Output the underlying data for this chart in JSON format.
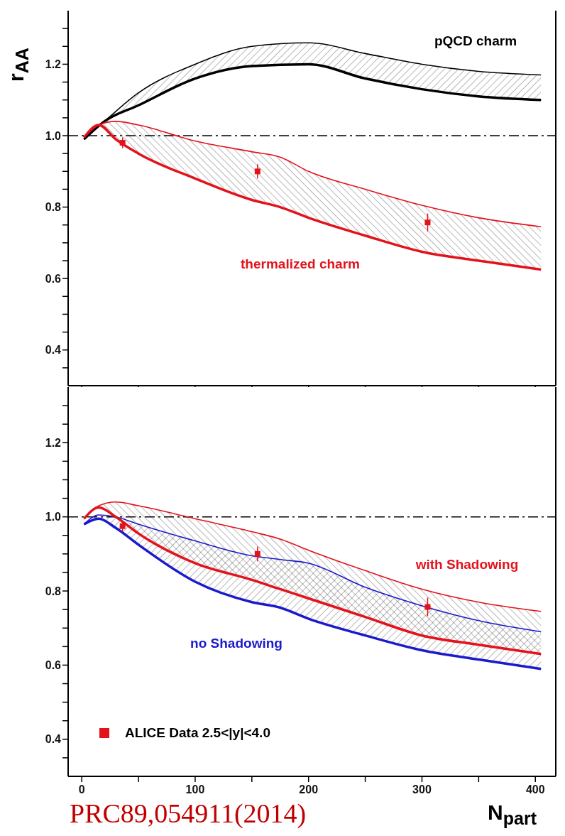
{
  "chart_data": [
    {
      "type": "line",
      "ylabel": "r$_{AA}$",
      "xlim": [
        -12,
        418
      ],
      "ylim": [
        0.3,
        1.35
      ],
      "xticks": [
        {
          "value": 0,
          "label": null
        },
        {
          "value": 50,
          "label": null
        },
        {
          "value": 100,
          "label": null
        },
        {
          "value": 150,
          "label": null
        },
        {
          "value": 200,
          "label": null
        },
        {
          "value": 250,
          "label": null
        },
        {
          "value": 300,
          "label": null
        },
        {
          "value": 350,
          "label": null
        },
        {
          "value": 400,
          "label": null
        }
      ],
      "yticks": [
        {
          "value": 0.35,
          "label": null
        },
        0.4,
        {
          "value": 0.45,
          "label": null
        },
        {
          "value": 0.5,
          "label": null
        },
        {
          "value": 0.55,
          "label": null
        },
        0.6,
        {
          "value": 0.65,
          "label": null
        },
        {
          "value": 0.7,
          "label": null
        },
        {
          "value": 0.75,
          "label": null
        },
        0.8,
        {
          "value": 0.85,
          "label": null
        },
        {
          "value": 0.9,
          "label": null
        },
        {
          "value": 0.95,
          "label": null
        },
        {
          "value": 1,
          "label": "1.0"
        },
        {
          "value": 1.05,
          "label": null
        },
        {
          "value": 1.1,
          "label": null
        },
        {
          "value": 1.15,
          "label": null
        },
        1.2,
        {
          "value": 1.25,
          "label": null
        },
        {
          "value": 1.3,
          "label": null
        }
      ],
      "tick_labels": "y",
      "legend": false,
      "ref_lines": [
        {
          "axis": "y",
          "value": 1,
          "line_style": "dashed",
          "color": "#000000"
        }
      ],
      "series": [
        {
          "name": "pQCD charm",
          "color": "#000000",
          "x": [
            2,
            20,
            50,
            100,
            150,
            200,
            250,
            300,
            350,
            405
          ],
          "values": [
            0.99,
            1.04,
            1.085,
            1.16,
            1.195,
            1.2,
            1.16,
            1.13,
            1.11,
            1.1
          ],
          "lower": [
            0.99,
            1.04,
            1.085,
            1.16,
            1.195,
            1.2,
            1.16,
            1.13,
            1.11,
            1.1
          ],
          "upper": [
            0.99,
            1.04,
            1.12,
            1.2,
            1.25,
            1.26,
            1.23,
            1.2,
            1.18,
            1.17
          ]
        },
        {
          "color": "#000000",
          "x": [
            2,
            20,
            50,
            100,
            150,
            200,
            250,
            300,
            350,
            405
          ],
          "values": [
            0.99,
            1.04,
            1.12,
            1.2,
            1.25,
            1.26,
            1.23,
            1.2,
            1.18,
            1.17
          ]
        },
        {
          "name": "thermalized charm",
          "color": "#e3121b",
          "x": [
            2,
            15,
            30,
            50,
            100,
            150,
            175,
            200,
            250,
            300,
            350,
            405
          ],
          "values": [
            0.995,
            1.03,
            0.99,
            0.95,
            0.88,
            0.82,
            0.8,
            0.77,
            0.72,
            0.675,
            0.65,
            0.625
          ],
          "lower": [
            0.995,
            1.03,
            0.99,
            0.95,
            0.88,
            0.82,
            0.8,
            0.77,
            0.72,
            0.675,
            0.65,
            0.625
          ],
          "upper": [
            0.995,
            1.03,
            1.04,
            1.03,
            0.985,
            0.955,
            0.94,
            0.9,
            0.85,
            0.805,
            0.77,
            0.745
          ]
        },
        {
          "color": "#e3121b",
          "x": [
            2,
            15,
            30,
            50,
            100,
            150,
            175,
            200,
            250,
            300,
            350,
            405
          ],
          "values": [
            0.995,
            1.03,
            1.04,
            1.03,
            0.985,
            0.955,
            0.94,
            0.9,
            0.85,
            0.805,
            0.77,
            0.745
          ]
        },
        {
          "type": "scatter",
          "marker": "square",
          "color": "#e3121b",
          "x": [
            36,
            155,
            305
          ],
          "values": [
            0.98,
            0.9,
            0.757
          ],
          "errors": [
            0.015,
            0.02,
            0.025
          ]
        }
      ]
    },
    {
      "type": "line",
      "xlabel": "N$_{part}$",
      "xlim": [
        -12,
        418
      ],
      "ylim": [
        0.3,
        1.35
      ],
      "xticks": [
        0,
        {
          "value": 50,
          "label": null
        },
        100,
        {
          "value": 150,
          "label": null
        },
        200,
        {
          "value": 250,
          "label": null
        },
        300,
        {
          "value": 350,
          "label": null
        },
        400
      ],
      "yticks": [
        {
          "value": 0.35,
          "label": null
        },
        0.4,
        {
          "value": 0.45,
          "label": null
        },
        {
          "value": 0.5,
          "label": null
        },
        {
          "value": 0.55,
          "label": null
        },
        0.6,
        {
          "value": 0.65,
          "label": null
        },
        {
          "value": 0.7,
          "label": null
        },
        {
          "value": 0.75,
          "label": null
        },
        0.8,
        {
          "value": 0.85,
          "label": null
        },
        {
          "value": 0.9,
          "label": null
        },
        {
          "value": 0.95,
          "label": null
        },
        {
          "value": 1,
          "label": "1.0"
        },
        {
          "value": 1.05,
          "label": null
        },
        {
          "value": 1.1,
          "label": null
        },
        {
          "value": 1.15,
          "label": null
        },
        1.2,
        {
          "value": 1.25,
          "label": null
        },
        {
          "value": 1.3,
          "label": null
        }
      ],
      "legend": "bottom left",
      "annotations": [
        "PRC89,054911(2014)"
      ],
      "ref_lines": [
        {
          "axis": "y",
          "value": 1,
          "line_style": "dashed",
          "color": "#000000"
        }
      ],
      "series": [
        {
          "name": "no Shadowing",
          "color": "#1a1acc",
          "x": [
            2,
            15,
            30,
            50,
            100,
            150,
            175,
            200,
            250,
            300,
            350,
            405
          ],
          "values": [
            0.98,
            0.995,
            0.97,
            0.925,
            0.825,
            0.77,
            0.755,
            0.725,
            0.68,
            0.64,
            0.615,
            0.59
          ],
          "lower": [
            0.98,
            0.995,
            0.97,
            0.925,
            0.825,
            0.77,
            0.755,
            0.725,
            0.68,
            0.64,
            0.615,
            0.59
          ],
          "upper": [
            0.98,
            1.005,
            1,
            0.98,
            0.935,
            0.895,
            0.885,
            0.875,
            0.81,
            0.76,
            0.72,
            0.69
          ]
        },
        {
          "color": "#1a1acc",
          "x": [
            2,
            15,
            30,
            50,
            100,
            150,
            175,
            200,
            250,
            300,
            350,
            405
          ],
          "values": [
            0.98,
            1.005,
            1,
            0.98,
            0.935,
            0.895,
            0.885,
            0.875,
            0.81,
            0.76,
            0.72,
            0.69
          ]
        },
        {
          "name": "with Shadowing",
          "color": "#e3121b",
          "x": [
            2,
            15,
            30,
            50,
            100,
            150,
            175,
            200,
            250,
            300,
            350,
            405
          ],
          "values": [
            0.995,
            1.03,
            1.04,
            1.03,
            0.995,
            0.96,
            0.94,
            0.91,
            0.855,
            0.805,
            0.77,
            0.745
          ],
          "lower": [
            0.995,
            1.025,
            1,
            0.955,
            0.875,
            0.83,
            0.805,
            0.78,
            0.73,
            0.68,
            0.655,
            0.63
          ],
          "upper": [
            0.995,
            1.03,
            1.04,
            1.03,
            0.995,
            0.96,
            0.94,
            0.91,
            0.855,
            0.805,
            0.77,
            0.745
          ]
        },
        {
          "color": "#e3121b",
          "x": [
            2,
            15,
            30,
            50,
            100,
            150,
            175,
            200,
            250,
            300,
            350,
            405
          ],
          "values": [
            0.995,
            1.025,
            1,
            0.955,
            0.875,
            0.83,
            0.805,
            0.78,
            0.73,
            0.68,
            0.655,
            0.63
          ]
        },
        {
          "name": "ALICE Data 2.5<|y|<4.0",
          "type": "scatter",
          "marker": "square",
          "color": "#e3121b",
          "x": [
            36,
            155,
            305
          ],
          "values": [
            0.975,
            0.9,
            0.757
          ],
          "errors": [
            0.015,
            0.02,
            0.025
          ]
        }
      ]
    }
  ]
}
